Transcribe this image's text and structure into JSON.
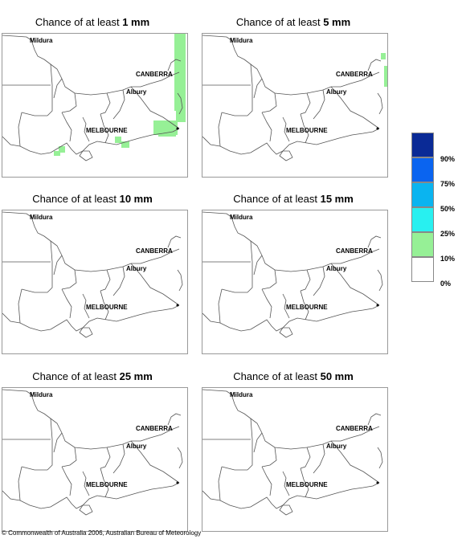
{
  "panels": [
    {
      "prefix": "Chance of at least ",
      "amount": "1 mm"
    },
    {
      "prefix": "Chance of at least ",
      "amount": "5 mm"
    },
    {
      "prefix": "Chance of at least ",
      "amount": "10 mm"
    },
    {
      "prefix": "Chance of at least ",
      "amount": "15 mm"
    },
    {
      "prefix": "Chance of at least ",
      "amount": "25 mm"
    },
    {
      "prefix": "Chance of at least ",
      "amount": "50 mm"
    }
  ],
  "cities": {
    "mildura": "Mildura",
    "canberra": "CANBERRA",
    "albury": "Albury",
    "melbourne": "MELBOURNE"
  },
  "legend": {
    "labels": [
      "90%",
      "75%",
      "50%",
      "25%",
      "10%",
      "0%"
    ],
    "colors": [
      "#0a2a96",
      "#0a64f0",
      "#0ab4f0",
      "#28f0f0",
      "#96f096",
      "#ffffff"
    ]
  },
  "copyright": "© Commonwealth of Australia 2006, Australian Bureau of Meteorology"
}
